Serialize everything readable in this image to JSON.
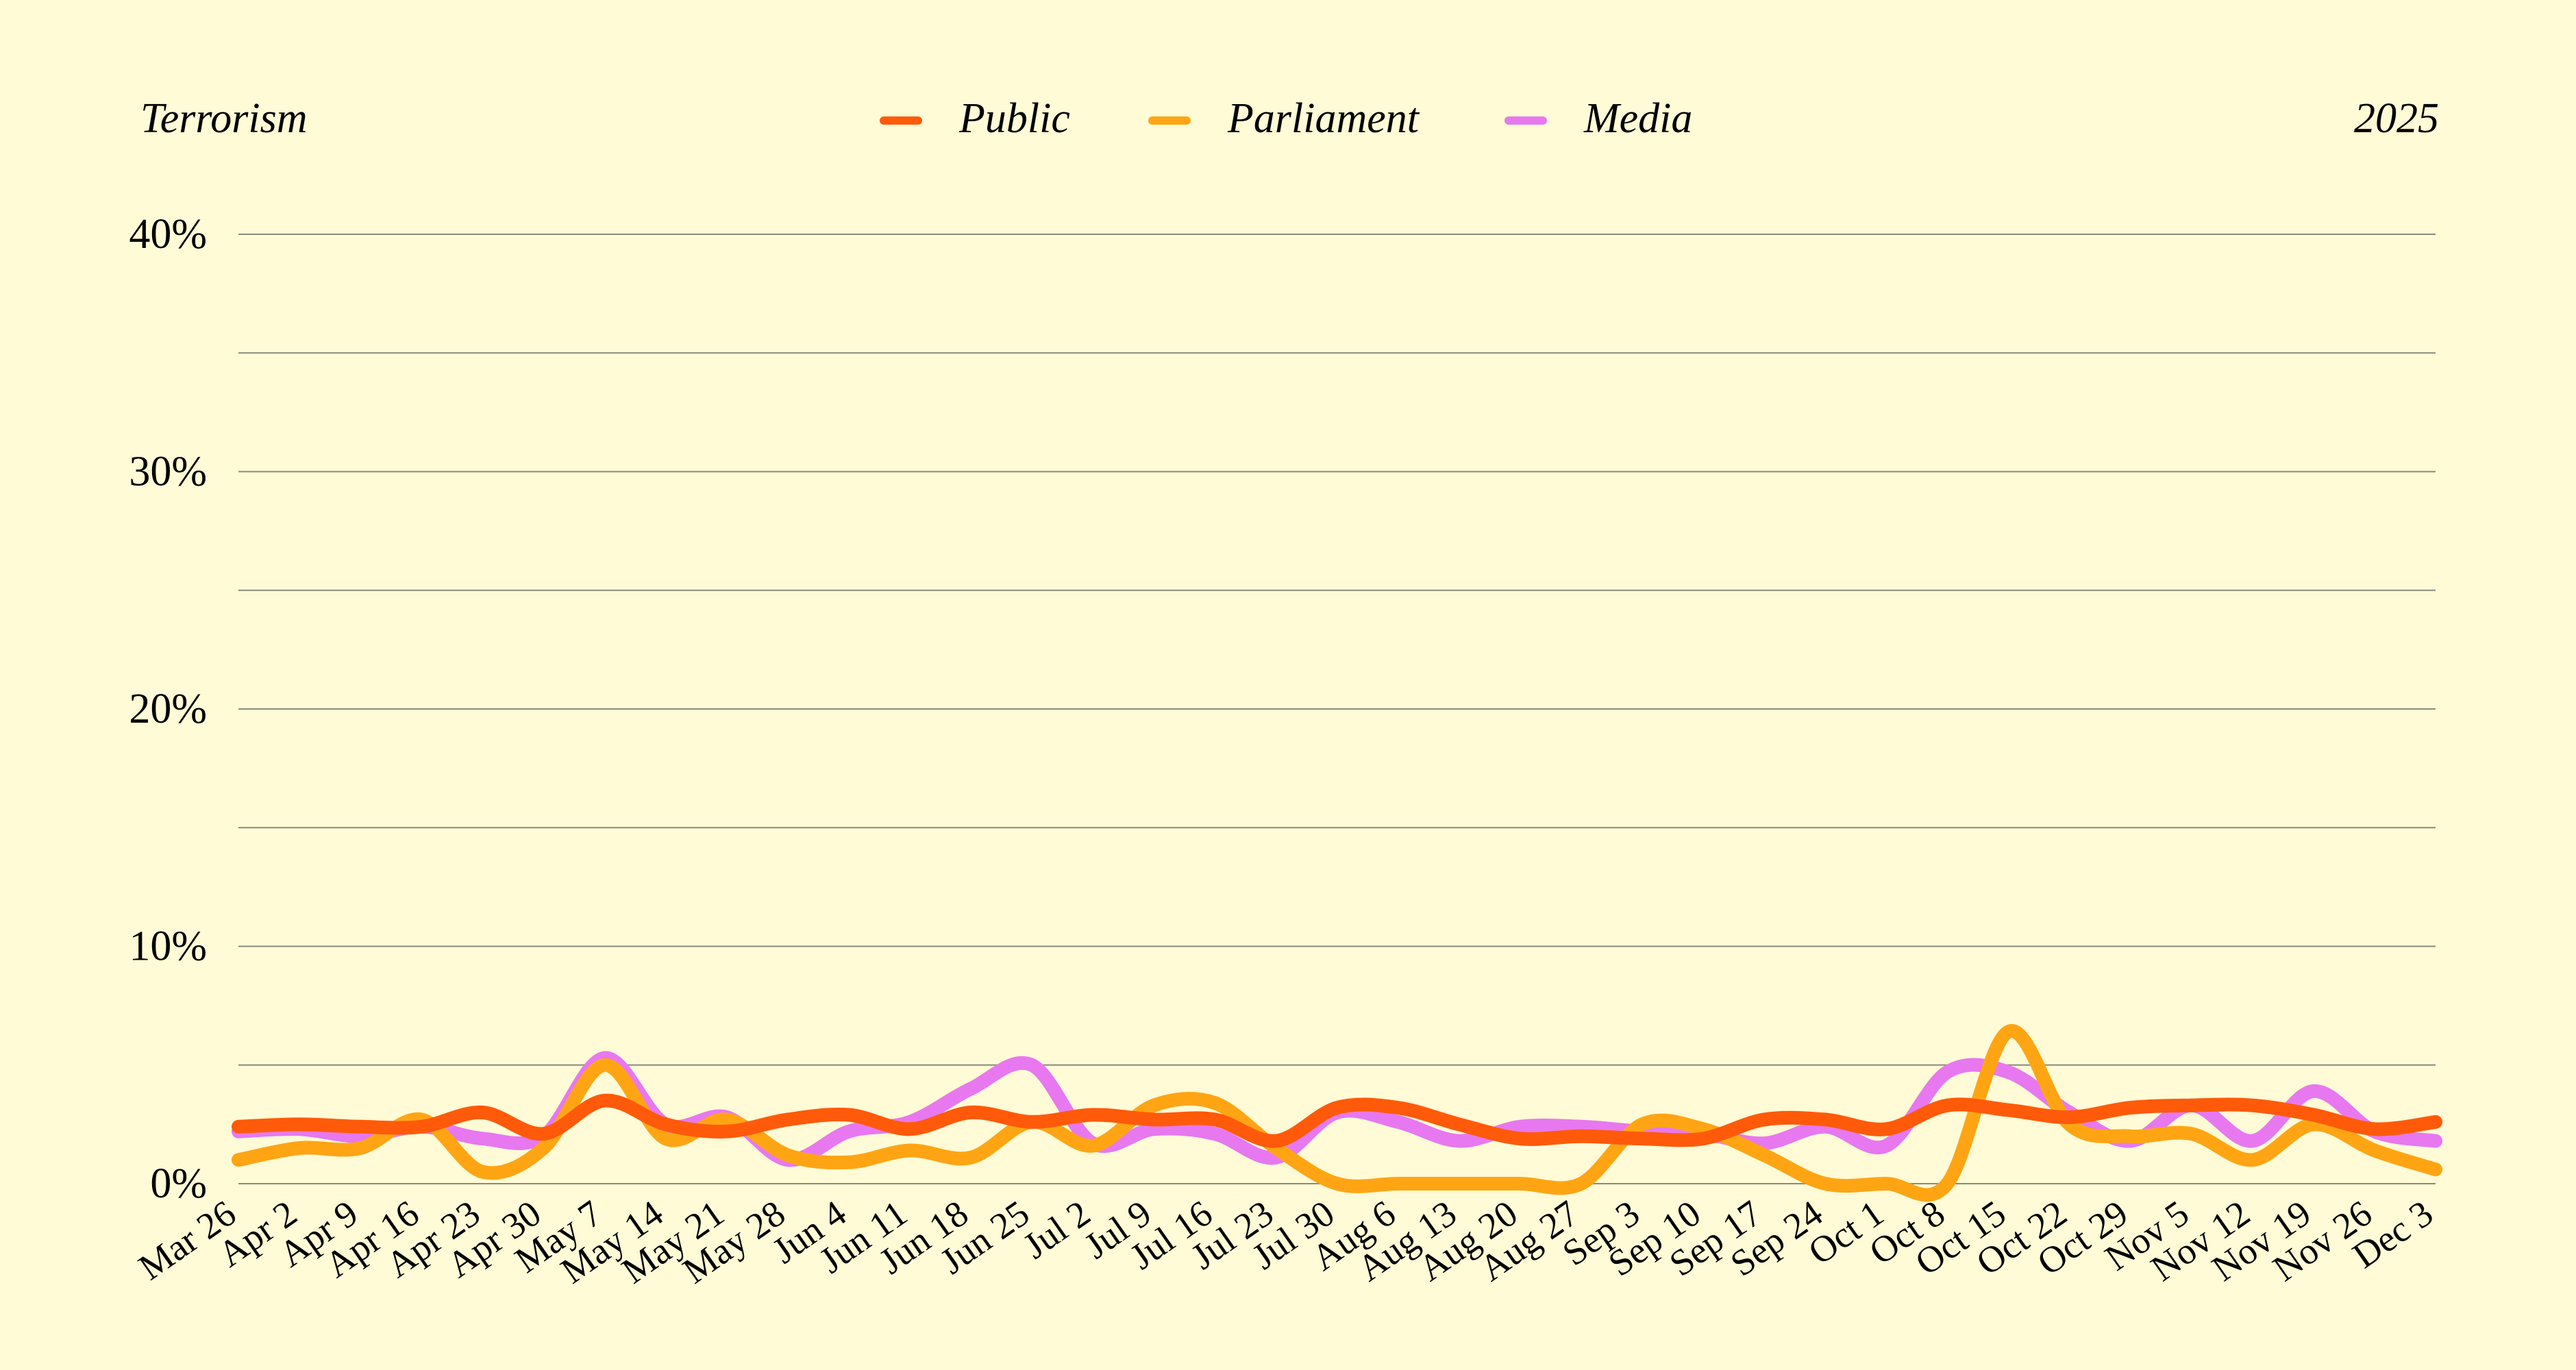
{
  "header": {
    "topic": "Terrorism",
    "year": "2025"
  },
  "chart_data": {
    "type": "line",
    "ylim": [
      0,
      40
    ],
    "y_ticks": [
      "0%",
      "10%",
      "20%",
      "30%",
      "40%"
    ],
    "y_tick_values": [
      0,
      10,
      20,
      30,
      40
    ],
    "grid": true,
    "legend_position": "top-center",
    "categories": [
      "Mar 26",
      "Apr 2",
      "Apr 9",
      "Apr 16",
      "Apr 23",
      "Apr 30",
      "May 7",
      "May 14",
      "May 21",
      "May 28",
      "Jun 4",
      "Jun 11",
      "Jun 18",
      "Jun 25",
      "Jul 2",
      "Jul 9",
      "Jul 16",
      "Jul 23",
      "Jul 30",
      "Aug 6",
      "Aug 13",
      "Aug 20",
      "Aug 27",
      "Sep 3",
      "Sep 10",
      "Sep 17",
      "Sep 24",
      "Oct 1",
      "Oct 8",
      "Oct 15",
      "Oct 22",
      "Oct 29",
      "Nov 5",
      "Nov 12",
      "Nov 19",
      "Nov 26",
      "Dec 3"
    ],
    "series": [
      {
        "name": "Public",
        "color": "#ff5a0a",
        "values": [
          2.4,
          2.5,
          2.4,
          2.4,
          3.0,
          2.1,
          3.5,
          2.5,
          2.2,
          2.7,
          2.9,
          2.3,
          3.0,
          2.6,
          2.9,
          2.7,
          2.7,
          1.8,
          3.2,
          3.2,
          2.5,
          1.9,
          2.0,
          1.9,
          1.9,
          2.7,
          2.7,
          2.3,
          3.3,
          3.1,
          2.8,
          3.2,
          3.3,
          3.3,
          2.9,
          2.3,
          2.6
        ]
      },
      {
        "name": "Parliament",
        "color": "#ffa514",
        "values": [
          1.0,
          1.5,
          1.5,
          2.7,
          0.5,
          1.5,
          5.0,
          1.9,
          2.7,
          1.2,
          0.9,
          1.4,
          1.1,
          2.6,
          1.6,
          3.3,
          3.4,
          1.5,
          0.0,
          0.0,
          0.0,
          0.0,
          0.0,
          2.5,
          2.3,
          1.2,
          0.0,
          0.0,
          0.0,
          6.4,
          2.5,
          2.0,
          2.1,
          1.0,
          2.5,
          1.4,
          0.6
        ]
      },
      {
        "name": "Media",
        "color": "#e878ef",
        "values": [
          2.2,
          2.3,
          2.0,
          2.4,
          1.9,
          2.0,
          5.3,
          2.5,
          2.8,
          1.0,
          2.2,
          2.6,
          4.0,
          5.0,
          1.7,
          2.3,
          2.1,
          1.1,
          3.0,
          2.6,
          1.8,
          2.4,
          2.4,
          2.2,
          2.1,
          1.7,
          2.4,
          1.6,
          4.7,
          4.7,
          3.0,
          1.8,
          3.3,
          1.8,
          3.9,
          2.2,
          1.8
        ]
      }
    ]
  }
}
